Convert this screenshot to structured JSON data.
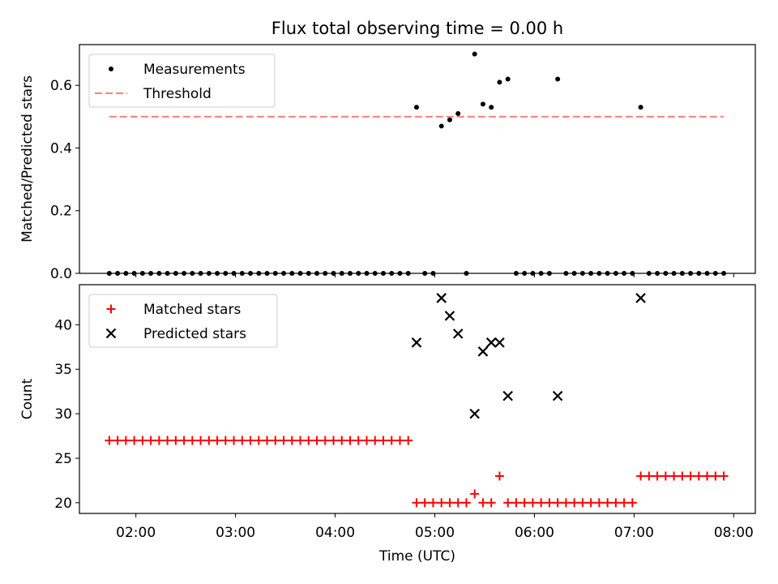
{
  "title": "Flux total observing time = 0.00 h",
  "colors": {
    "measurement": "#000000",
    "threshold": "#ff7f7f",
    "matched": "#ff0000",
    "predicted": "#000000"
  },
  "chart_data": [
    {
      "type": "scatter",
      "panel": "top",
      "title": "Flux total observing time = 0.00 h",
      "xlabel": "",
      "ylabel": "Matched/Predicted stars",
      "xlim": [
        "01:26",
        "08:13"
      ],
      "ylim": [
        0,
        0.73
      ],
      "yticks": [
        0.0,
        0.2,
        0.4,
        0.6
      ],
      "ytick_labels": [
        "0.0",
        "0.2",
        "0.4",
        "0.6"
      ],
      "xticks": [
        "02:00",
        "03:00",
        "04:00",
        "05:00",
        "06:00",
        "07:00",
        "08:00"
      ],
      "legend_position": "upper-left",
      "grid": false,
      "series": [
        {
          "name": "Measurements",
          "marker": "dot",
          "x": [
            "01:44",
            "01:49",
            "01:54",
            "01:59",
            "02:04",
            "02:09",
            "02:14",
            "02:19",
            "02:24",
            "02:29",
            "02:34",
            "02:39",
            "02:44",
            "02:49",
            "02:54",
            "02:59",
            "03:04",
            "03:09",
            "03:14",
            "03:19",
            "03:24",
            "03:29",
            "03:34",
            "03:39",
            "03:44",
            "03:49",
            "03:54",
            "03:59",
            "04:04",
            "04:09",
            "04:14",
            "04:19",
            "04:24",
            "04:29",
            "04:34",
            "04:39",
            "04:44",
            "04:49",
            "04:54",
            "04:59",
            "05:04",
            "05:09",
            "05:14",
            "05:19",
            "05:24",
            "05:29",
            "05:34",
            "05:39",
            "05:44",
            "05:49",
            "05:54",
            "05:59",
            "06:04",
            "06:09",
            "06:14",
            "06:19",
            "06:24",
            "06:29",
            "06:34",
            "06:39",
            "06:44",
            "06:49",
            "06:54",
            "06:59",
            "07:04",
            "07:09",
            "07:14",
            "07:19",
            "07:24",
            "07:29",
            "07:34",
            "07:39",
            "07:44",
            "07:49",
            "07:54"
          ],
          "y": [
            0,
            0,
            0,
            0,
            0,
            0,
            0,
            0,
            0,
            0,
            0,
            0,
            0,
            0,
            0,
            0,
            0,
            0,
            0,
            0,
            0,
            0,
            0,
            0,
            0,
            0,
            0,
            0,
            0,
            0,
            0,
            0,
            0,
            0,
            0,
            0,
            0,
            0.53,
            0,
            0,
            0.47,
            0.49,
            0.51,
            0,
            0.7,
            0.54,
            0.53,
            0.61,
            0.62,
            0,
            0,
            0,
            0,
            0,
            0.62,
            0,
            0,
            0,
            0,
            0,
            0,
            0,
            0,
            0,
            0.53,
            0,
            0,
            0,
            0,
            0,
            0,
            0,
            0,
            0,
            0
          ]
        },
        {
          "name": "Threshold",
          "style": "dashed",
          "x": [
            "01:44",
            "07:54"
          ],
          "y": [
            0.5,
            0.5
          ]
        }
      ]
    },
    {
      "type": "scatter",
      "panel": "bottom",
      "xlabel": "Time (UTC)",
      "ylabel": "Count",
      "xlim": [
        "01:26",
        "08:13"
      ],
      "ylim": [
        18.8,
        44.5
      ],
      "yticks": [
        20,
        25,
        30,
        35,
        40
      ],
      "ytick_labels": [
        "20",
        "25",
        "30",
        "35",
        "40"
      ],
      "xticks": [
        "02:00",
        "03:00",
        "04:00",
        "05:00",
        "06:00",
        "07:00",
        "08:00"
      ],
      "legend_position": "upper-left",
      "grid": false,
      "series": [
        {
          "name": "Matched stars",
          "marker": "plus",
          "x": [
            "01:44",
            "01:49",
            "01:54",
            "01:59",
            "02:04",
            "02:09",
            "02:14",
            "02:19",
            "02:24",
            "02:29",
            "02:34",
            "02:39",
            "02:44",
            "02:49",
            "02:54",
            "02:59",
            "03:04",
            "03:09",
            "03:14",
            "03:19",
            "03:24",
            "03:29",
            "03:34",
            "03:39",
            "03:44",
            "03:49",
            "03:54",
            "03:59",
            "04:04",
            "04:09",
            "04:14",
            "04:19",
            "04:24",
            "04:29",
            "04:34",
            "04:39",
            "04:44",
            "04:49",
            "04:54",
            "04:59",
            "05:04",
            "05:09",
            "05:14",
            "05:19",
            "05:24",
            "05:29",
            "05:34",
            "05:39",
            "05:44",
            "05:49",
            "05:54",
            "05:59",
            "06:04",
            "06:09",
            "06:14",
            "06:19",
            "06:24",
            "06:29",
            "06:34",
            "06:39",
            "06:44",
            "06:49",
            "06:54",
            "06:59",
            "07:04",
            "07:09",
            "07:14",
            "07:19",
            "07:24",
            "07:29",
            "07:34",
            "07:39",
            "07:44",
            "07:49",
            "07:54"
          ],
          "y": [
            27,
            27,
            27,
            27,
            27,
            27,
            27,
            27,
            27,
            27,
            27,
            27,
            27,
            27,
            27,
            27,
            27,
            27,
            27,
            27,
            27,
            27,
            27,
            27,
            27,
            27,
            27,
            27,
            27,
            27,
            27,
            27,
            27,
            27,
            27,
            27,
            27,
            20,
            20,
            20,
            20,
            20,
            20,
            20,
            21,
            20,
            20,
            23,
            20,
            20,
            20,
            20,
            20,
            20,
            20,
            20,
            20,
            20,
            20,
            20,
            20,
            20,
            20,
            20,
            23,
            23,
            23,
            23,
            23,
            23,
            23,
            23,
            23,
            23,
            23
          ]
        },
        {
          "name": "Predicted stars",
          "marker": "x",
          "x": [
            "04:49",
            "05:04",
            "05:09",
            "05:14",
            "05:24",
            "05:29",
            "05:34",
            "05:39",
            "05:44",
            "06:14",
            "07:04"
          ],
          "y": [
            38,
            43,
            41,
            39,
            30,
            37,
            38,
            38,
            32,
            32,
            43
          ]
        }
      ]
    }
  ]
}
